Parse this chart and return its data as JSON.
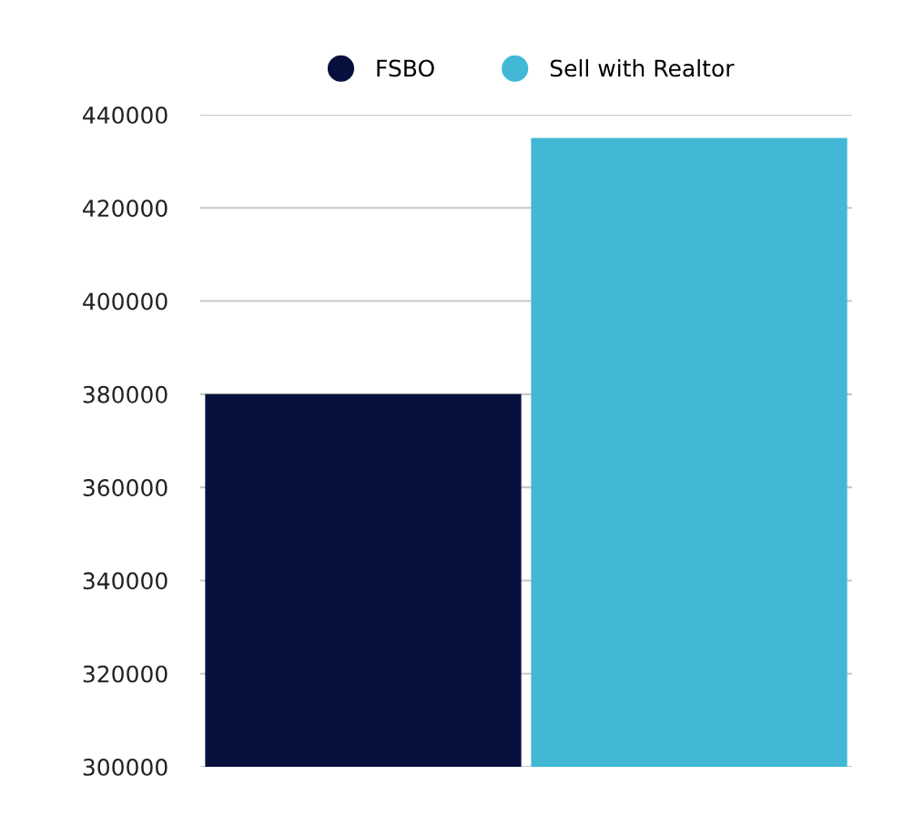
{
  "chart_data": {
    "type": "bar",
    "categories": [
      null
    ],
    "series": [
      {
        "name": "FSBO",
        "color": "#08103e",
        "values": [
          380000
        ]
      },
      {
        "name": "Sell with Realtor",
        "color": "#42b8d6",
        "values": [
          435000
        ]
      }
    ],
    "ylim": [
      300000,
      440000
    ],
    "yticks": [
      300000,
      320000,
      340000,
      360000,
      380000,
      400000,
      420000,
      440000
    ],
    "grid": "y",
    "legend": "top",
    "tick_labels": "y"
  }
}
